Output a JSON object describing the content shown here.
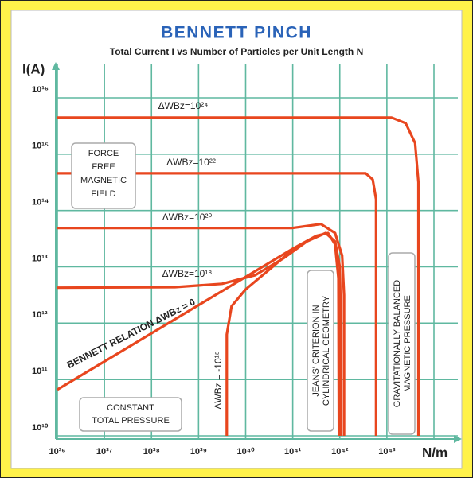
{
  "chart_data": {
    "type": "line",
    "title": "BENNETT PINCH",
    "subtitle": "Total Current I vs Number of Particles per Unit Length N",
    "x_label": "N/m",
    "y_label": "I(A)",
    "xscale": "log",
    "yscale": "log",
    "grid": true,
    "xlim": [
      1e+36,
      1e+44
    ],
    "ylim": [
      10000000000.0,
      1e+16
    ],
    "xticks": [
      {
        "value": 1e+36,
        "label": "10³⁶"
      },
      {
        "value": 1e+37,
        "label": "10³⁷"
      },
      {
        "value": 1e+38,
        "label": "10³⁸"
      },
      {
        "value": 1e+39,
        "label": "10³⁹"
      },
      {
        "value": 1e+40,
        "label": "10⁴⁰"
      },
      {
        "value": 1e+41,
        "label": "10⁴¹"
      },
      {
        "value": 1e+42,
        "label": "10⁴²"
      },
      {
        "value": 1e+43,
        "label": "10⁴³"
      }
    ],
    "yticks": [
      {
        "value": 10000000000.0,
        "label": "10¹⁰"
      },
      {
        "value": 100000000000.0,
        "label": "10¹¹"
      },
      {
        "value": 1000000000000.0,
        "label": "10¹²"
      },
      {
        "value": 10000000000000.0,
        "label": "10¹³"
      },
      {
        "value": 100000000000000.0,
        "label": "10¹⁴"
      },
      {
        "value": 1000000000000000.0,
        "label": "10¹⁵"
      },
      {
        "value": 1e+16,
        "label": "10¹⁶"
      }
    ],
    "series": [
      {
        "name": "ΔWBz=10²⁴",
        "color": "#e8461e",
        "x": [
          1e+36,
          1.26e+43,
          2.51e+43,
          3.98e+43,
          4.68e+43,
          4.68e+43
        ],
        "values": [
          4470000000000000.0,
          4470000000000000.0,
          3550000000000000.0,
          1580000000000000.0,
          316000000000000.0,
          10000000000.0
        ]
      },
      {
        "name": "ΔWBz=10²²",
        "color": "#e8461e",
        "x": [
          1e+36,
          3.55e+42,
          5.01e+42,
          5.89e+42,
          5.89e+42
        ],
        "values": [
          457000000000000.0,
          457000000000000.0,
          355000000000000.0,
          158000000000000.0,
          10000000000.0
        ]
      },
      {
        "name": "ΔWBz=10²⁰",
        "color": "#e8461e",
        "x": [
          1e+36,
          1e+41,
          3.98e+41,
          7.94e+41,
          1.12e+42,
          1.23e+42,
          1.23e+42
        ],
        "values": [
          49000000000000.0,
          49000000000000.0,
          57500000000000.0,
          39800000000000.0,
          15800000000000.0,
          3160000000000.0,
          10000000000.0
        ]
      },
      {
        "name": "ΔWBz=10¹⁸",
        "color": "#e8461e",
        "x": [
          1e+36,
          3.16e+38,
          3.16e+39,
          1.58e+40,
          6.31e+40,
          2e+41,
          5.01e+41,
          7.94e+41,
          1e+42,
          1.05e+42,
          1.05e+42
        ],
        "values": [
          4270000000000.0,
          4370000000000.0,
          5010000000000.0,
          7080000000000.0,
          14100000000000.0,
          28200000000000.0,
          39800000000000.0,
          28200000000000.0,
          10000000000000.0,
          1000000000000.0,
          10000000000.0
        ]
      },
      {
        "name": "BENNETT RELATION ΔWBz = 0",
        "color": "#e8461e",
        "x": [
          1e+36,
          1e+41,
          3.16e+41,
          5.62e+41,
          7.94e+41,
          9.33e+41,
          9.55e+41
        ],
        "values": [
          66000000000.0,
          20900000000000.0,
          35500000000000.0,
          39800000000000.0,
          25100000000000.0,
          6310000000000.0,
          10000000000.0
        ]
      },
      {
        "name": "ΔWBz = -10¹⁸",
        "color": "#e8461e",
        "x": [
          3.98e+39,
          3.98e+39,
          5.01e+39,
          1e+40,
          3.16e+40,
          1e+41
        ],
        "values": [
          10000000000.0,
          631000000000.0,
          2000000000000.0,
          3980000000000.0,
          8910000000000.0,
          20000000000000.0
        ]
      }
    ],
    "annotations": [
      "FORCE",
      "FREE",
      "MAGNETIC",
      "FIELD",
      "CONSTANT",
      "TOTAL PRESSURE",
      "JEANS' CRITERION IN",
      "CYLINDRICAL GEOMETRY",
      "GRAVITATIONALLY BALANCED",
      "MAGNETIC PRESSURE"
    ]
  }
}
